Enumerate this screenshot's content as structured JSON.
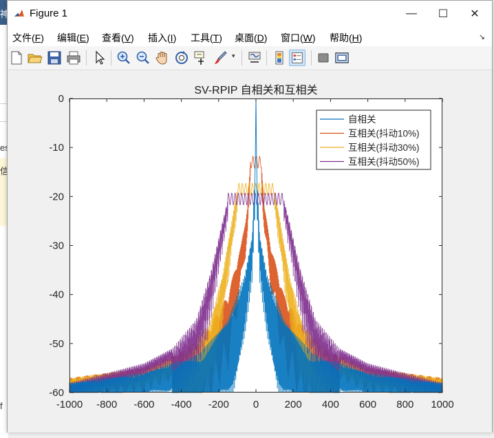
{
  "background_window": {
    "glyphs": [
      "神",
      "es",
      "信",
      "f"
    ]
  },
  "window": {
    "title": "Figure 1",
    "controls": {
      "minimize": "—",
      "maximize": "☐",
      "close": "✕"
    }
  },
  "menu": [
    {
      "label": "文件(",
      "key": "F",
      "tail": ")"
    },
    {
      "label": "编辑(",
      "key": "E",
      "tail": ")"
    },
    {
      "label": "查看(",
      "key": "V",
      "tail": ")"
    },
    {
      "label": "插入(",
      "key": "I",
      "tail": ")"
    },
    {
      "label": "工具(",
      "key": "T",
      "tail": ")"
    },
    {
      "label": "桌面(",
      "key": "D",
      "tail": ")"
    },
    {
      "label": "窗口(",
      "key": "W",
      "tail": ")"
    },
    {
      "label": "帮助(",
      "key": "H",
      "tail": ")"
    }
  ],
  "toolbar": [
    "new-figure-icon",
    "open-icon",
    "save-icon",
    "print-icon",
    "pointer-icon",
    "zoom-in-icon",
    "zoom-out-icon",
    "pan-icon",
    "rotate-3d-icon",
    "data-cursor-icon",
    "brush-icon",
    "link-plot-icon",
    "colorbar-icon",
    "legend-icon",
    "hide-plot-tools-icon",
    "show-plot-tools-icon"
  ],
  "chart_data": {
    "type": "line",
    "title": "SV-RPIP 自相关和互相关",
    "xlabel": "",
    "ylabel": "",
    "xlim": [
      -1000,
      1000
    ],
    "ylim": [
      -60,
      0
    ],
    "xticks": [
      -1000,
      -800,
      -600,
      -400,
      -200,
      0,
      200,
      400,
      600,
      800,
      1000
    ],
    "yticks": [
      0,
      -10,
      -20,
      -30,
      -40,
      -50,
      -60
    ],
    "grid": false,
    "legend_position": "top-right",
    "series": [
      {
        "name": "自相关",
        "color": "#0072BD",
        "peak": 0,
        "plateau_halfwidth": 4,
        "decay": 0.075,
        "ripple": 14,
        "envelope": [
          [
            -1000,
            -58
          ],
          [
            -600,
            -56
          ],
          [
            -300,
            -52
          ],
          [
            -150,
            -45
          ],
          [
            -60,
            -36
          ],
          [
            -20,
            -28
          ],
          [
            -5,
            -15
          ],
          [
            0,
            0
          ],
          [
            5,
            -15
          ],
          [
            20,
            -28
          ],
          [
            60,
            -36
          ],
          [
            150,
            -45
          ],
          [
            300,
            -52
          ],
          [
            600,
            -56
          ],
          [
            1000,
            -58
          ]
        ]
      },
      {
        "name": "互相关(抖动10%)",
        "color": "#D95319",
        "peak": -13,
        "plateau_halfwidth": 30,
        "decay": 0.06,
        "ripple": 10,
        "envelope": [
          [
            -1000,
            -57
          ],
          [
            -600,
            -55
          ],
          [
            -300,
            -50
          ],
          [
            -150,
            -40
          ],
          [
            -80,
            -30
          ],
          [
            -45,
            -22
          ],
          [
            -30,
            -13
          ],
          [
            30,
            -13
          ],
          [
            45,
            -22
          ],
          [
            80,
            -30
          ],
          [
            150,
            -40
          ],
          [
            300,
            -50
          ],
          [
            600,
            -55
          ],
          [
            1000,
            -57
          ]
        ]
      },
      {
        "name": "互相关(抖动30%)",
        "color": "#EDB120",
        "peak": -18.5,
        "plateau_halfwidth": 100,
        "decay": 0.045,
        "ripple": 9,
        "envelope": [
          [
            -1000,
            -57
          ],
          [
            -600,
            -55
          ],
          [
            -400,
            -52
          ],
          [
            -250,
            -46
          ],
          [
            -180,
            -36
          ],
          [
            -130,
            -25
          ],
          [
            -100,
            -18.5
          ],
          [
            100,
            -18.5
          ],
          [
            130,
            -25
          ],
          [
            180,
            -36
          ],
          [
            250,
            -46
          ],
          [
            400,
            -52
          ],
          [
            600,
            -55
          ],
          [
            1000,
            -57
          ]
        ]
      },
      {
        "name": "互相关(抖动50%)",
        "color": "#7E2F8E",
        "peak": -20.5,
        "plateau_halfwidth": 150,
        "decay": 0.035,
        "ripple": 8,
        "envelope": [
          [
            -1000,
            -58
          ],
          [
            -600,
            -54
          ],
          [
            -450,
            -51
          ],
          [
            -320,
            -45
          ],
          [
            -240,
            -35
          ],
          [
            -185,
            -26
          ],
          [
            -150,
            -20.5
          ],
          [
            150,
            -20.5
          ],
          [
            185,
            -26
          ],
          [
            240,
            -35
          ],
          [
            320,
            -45
          ],
          [
            450,
            -51
          ],
          [
            600,
            -54
          ],
          [
            1000,
            -58
          ]
        ]
      }
    ]
  }
}
